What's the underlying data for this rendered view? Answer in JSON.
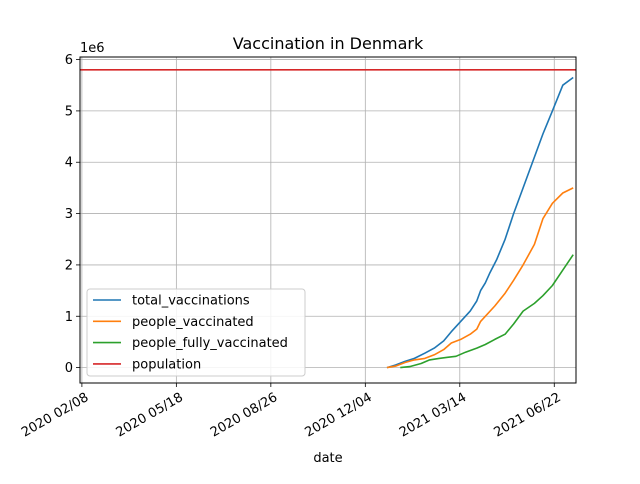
{
  "chart_data": {
    "type": "line",
    "title": "Vaccination in Denmark",
    "xlabel": "date",
    "ylabel": "",
    "y_offset_label": "1e6",
    "x_axis_type": "date",
    "xlim": [
      "2020-02-06",
      "2021-07-15"
    ],
    "ylim": [
      -0.3,
      6.05
    ],
    "x_ticks": [
      "2020-02-08",
      "2020-05-18",
      "2020-08-26",
      "2020-12-04",
      "2021-03-14",
      "2021-06-22"
    ],
    "x_tick_labels": [
      "2020 02/08",
      "2020 05/18",
      "2020 08/26",
      "2020 12/04",
      "2021 03/14",
      "2021 06/22"
    ],
    "y_ticks": [
      0,
      1,
      2,
      3,
      4,
      5,
      6
    ],
    "y_tick_labels": [
      "0",
      "1",
      "2",
      "3",
      "4",
      "5",
      "6"
    ],
    "grid": true,
    "legend_position": "lower-left",
    "series": [
      {
        "name": "total_vaccinations",
        "color": "#1f77b4",
        "x": [
          "2020-12-27",
          "2021-01-05",
          "2021-01-15",
          "2021-01-25",
          "2021-02-05",
          "2021-02-15",
          "2021-02-25",
          "2021-03-05",
          "2021-03-15",
          "2021-03-25",
          "2021-04-01",
          "2021-04-05",
          "2021-04-10",
          "2021-04-15",
          "2021-04-22",
          "2021-05-01",
          "2021-05-10",
          "2021-05-20",
          "2021-06-01",
          "2021-06-10",
          "2021-06-20",
          "2021-07-01",
          "2021-07-12"
        ],
        "y": [
          0.0,
          0.05,
          0.12,
          0.18,
          0.28,
          0.38,
          0.52,
          0.7,
          0.9,
          1.1,
          1.3,
          1.5,
          1.65,
          1.85,
          2.1,
          2.5,
          3.0,
          3.5,
          4.1,
          4.55,
          5.0,
          5.5,
          5.65
        ]
      },
      {
        "name": "people_vaccinated",
        "color": "#ff7f0e",
        "x": [
          "2020-12-27",
          "2021-01-05",
          "2021-01-15",
          "2021-01-25",
          "2021-02-05",
          "2021-02-15",
          "2021-02-25",
          "2021-03-05",
          "2021-03-15",
          "2021-03-25",
          "2021-04-01",
          "2021-04-05",
          "2021-04-10",
          "2021-04-20",
          "2021-05-01",
          "2021-05-10",
          "2021-05-20",
          "2021-06-01",
          "2021-06-10",
          "2021-06-20",
          "2021-07-01",
          "2021-07-12"
        ],
        "y": [
          0.0,
          0.03,
          0.1,
          0.15,
          0.18,
          0.25,
          0.35,
          0.48,
          0.55,
          0.65,
          0.75,
          0.9,
          1.0,
          1.2,
          1.45,
          1.7,
          2.0,
          2.4,
          2.9,
          3.2,
          3.4,
          3.5
        ]
      },
      {
        "name": "people_fully_vaccinated",
        "color": "#2ca02c",
        "x": [
          "2021-01-10",
          "2021-01-20",
          "2021-02-01",
          "2021-02-10",
          "2021-02-20",
          "2021-03-01",
          "2021-03-10",
          "2021-03-20",
          "2021-04-01",
          "2021-04-10",
          "2021-04-20",
          "2021-05-01",
          "2021-05-10",
          "2021-05-20",
          "2021-06-01",
          "2021-06-10",
          "2021-06-20",
          "2021-07-01",
          "2021-07-12"
        ],
        "y": [
          0.0,
          0.02,
          0.08,
          0.15,
          0.18,
          0.2,
          0.22,
          0.3,
          0.38,
          0.45,
          0.55,
          0.65,
          0.85,
          1.1,
          1.25,
          1.4,
          1.6,
          1.9,
          2.2
        ]
      },
      {
        "name": "population",
        "color": "#d62728",
        "x": [
          "2020-02-06",
          "2021-07-15"
        ],
        "y": [
          5.8,
          5.8
        ]
      }
    ]
  }
}
